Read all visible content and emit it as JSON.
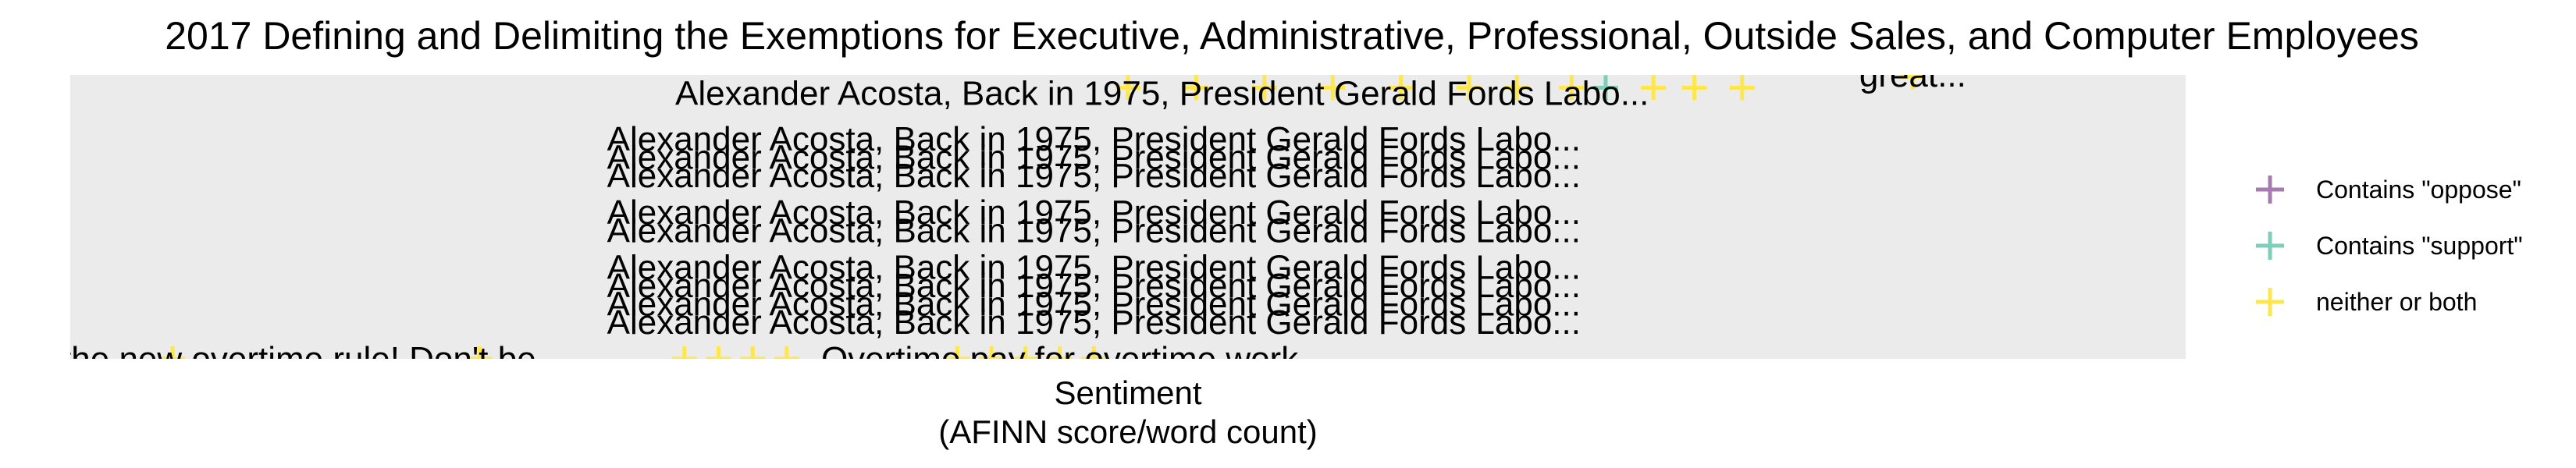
{
  "chart_data": {
    "type": "scatter",
    "title": "2017 Defining and Delimiting the Exemptions for Executive, Administrative, Professional, Outside Sales, and Computer Employees",
    "xlabel": "Sentiment",
    "xlabel_sub": "(AFINN score/word count)",
    "ylabel": "",
    "grid": false,
    "legend_position": "right",
    "colors": {
      "oppose": "#a67bb0",
      "support": "#7fcdbb",
      "neither": "#fde74c",
      "panel": "#ebebeb"
    },
    "legend": [
      {
        "key": "oppose",
        "label": "Contains \"oppose\""
      },
      {
        "key": "support",
        "label": "Contains \"support\""
      },
      {
        "key": "neither",
        "label": "neither or both"
      }
    ],
    "annotations": [
      {
        "text": "Alexander Acosta,  Back in 1975, President Gerald Fords Labo...",
        "x": 0.0,
        "y": 0.1
      },
      {
        "text": "Alexander Acosta,  Back in 1975, President Gerald Fords Labo...",
        "x": 0.0,
        "y": 0.2
      },
      {
        "text": "Alexander Acosta,  Back in 1975, President Gerald Fords Labo...",
        "x": 0.0,
        "y": 0.3
      },
      {
        "text": "Alexander Acosta,  Back in 1975, President Gerald Fords Labo...",
        "x": 0.0,
        "y": 0.4
      },
      {
        "text": "Alexander Acosta,  Back in 1975, President Gerald Fords Labo...",
        "x": 0.0,
        "y": 0.6
      },
      {
        "text": "Alexander Acosta,  Back in 1975, President Gerald Fords Labo...",
        "x": 0.0,
        "y": 0.7
      },
      {
        "text": "Alexander Acosta,  Back in 1975, President Gerald Fords Labo...",
        "x": 0.0,
        "y": 0.9
      },
      {
        "text": "Alexander Acosta,  Back in 1975, President Gerald Fords Labo...",
        "x": 0.0,
        "y": 1.0
      },
      {
        "text": "Alexander Acosta,  Back in 1975, President Gerald Fords Labo...",
        "x": 0.0,
        "y": 1.1
      },
      {
        "text": "Alexander Acosta,  Back in 1975, President Gerald Fords Labo...",
        "x": 0.1,
        "y": 1.35
      },
      {
        "text": "great...",
        "x": 1.2,
        "y": 1.45
      },
      {
        "text": "Overtime pay for overtime work",
        "x": -0.05,
        "y": -0.1
      },
      {
        "text": "nent the new overtime rule! Don't be...",
        "x": -1.2,
        "y": -0.1
      }
    ],
    "points": [
      {
        "x": 0.05,
        "y": 1.38,
        "group": "neither"
      },
      {
        "x": 0.15,
        "y": 1.38,
        "group": "neither"
      },
      {
        "x": 0.25,
        "y": 1.38,
        "group": "neither"
      },
      {
        "x": 0.35,
        "y": 1.38,
        "group": "neither"
      },
      {
        "x": 0.45,
        "y": 1.38,
        "group": "neither"
      },
      {
        "x": 0.55,
        "y": 1.38,
        "group": "neither"
      },
      {
        "x": 0.62,
        "y": 1.38,
        "group": "neither"
      },
      {
        "x": 0.7,
        "y": 1.38,
        "group": "neither"
      },
      {
        "x": 0.75,
        "y": 1.38,
        "group": "support"
      },
      {
        "x": 0.82,
        "y": 1.38,
        "group": "neither"
      },
      {
        "x": 0.88,
        "y": 1.38,
        "group": "neither"
      },
      {
        "x": 0.95,
        "y": 1.38,
        "group": "neither"
      },
      {
        "x": 1.2,
        "y": 1.44,
        "group": "neither"
      },
      {
        "x": -1.35,
        "y": -0.1,
        "group": "neither"
      },
      {
        "x": -0.9,
        "y": -0.1,
        "group": "neither"
      },
      {
        "x": -0.6,
        "y": -0.1,
        "group": "neither"
      },
      {
        "x": -0.55,
        "y": -0.1,
        "group": "neither"
      },
      {
        "x": -0.5,
        "y": -0.1,
        "group": "neither"
      },
      {
        "x": -0.45,
        "y": -0.1,
        "group": "neither"
      },
      {
        "x": -0.2,
        "y": -0.1,
        "group": "neither"
      },
      {
        "x": -0.15,
        "y": -0.1,
        "group": "neither"
      },
      {
        "x": -0.1,
        "y": -0.1,
        "group": "neither"
      },
      {
        "x": -0.05,
        "y": -0.1,
        "group": "neither"
      },
      {
        "x": 0.0,
        "y": -0.1,
        "group": "neither"
      }
    ],
    "xlim": [
      -1.5,
      1.6
    ],
    "ylim": [
      -0.1,
      1.45
    ]
  }
}
